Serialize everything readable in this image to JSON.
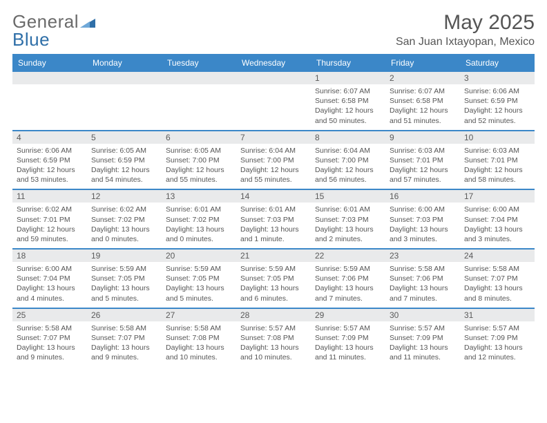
{
  "brand": {
    "part1": "General",
    "part2": "Blue"
  },
  "title": "May 2025",
  "location": "San Juan Ixtayopan, Mexico",
  "colors": {
    "header_blue": "#3b87c8",
    "row_grey": "#e9eaeb",
    "text": "#333333",
    "muted": "#555555",
    "logo_grey": "#6a6a6a",
    "logo_blue": "#2f6fa8",
    "background": "#ffffff"
  },
  "fonts": {
    "family": "Arial",
    "title_pt": 30,
    "location_pt": 16,
    "weekday_pt": 12,
    "daynum_pt": 12,
    "body_pt": 10.5
  },
  "weekdays": [
    "Sunday",
    "Monday",
    "Tuesday",
    "Wednesday",
    "Thursday",
    "Friday",
    "Saturday"
  ],
  "calendar": {
    "type": "table",
    "month": 5,
    "year": 2025,
    "first_weekday_index": 4,
    "days": [
      {
        "n": 1,
        "sunrise": "6:07 AM",
        "sunset": "6:58 PM",
        "daylight": "12 hours and 50 minutes."
      },
      {
        "n": 2,
        "sunrise": "6:07 AM",
        "sunset": "6:58 PM",
        "daylight": "12 hours and 51 minutes."
      },
      {
        "n": 3,
        "sunrise": "6:06 AM",
        "sunset": "6:59 PM",
        "daylight": "12 hours and 52 minutes."
      },
      {
        "n": 4,
        "sunrise": "6:06 AM",
        "sunset": "6:59 PM",
        "daylight": "12 hours and 53 minutes."
      },
      {
        "n": 5,
        "sunrise": "6:05 AM",
        "sunset": "6:59 PM",
        "daylight": "12 hours and 54 minutes."
      },
      {
        "n": 6,
        "sunrise": "6:05 AM",
        "sunset": "7:00 PM",
        "daylight": "12 hours and 55 minutes."
      },
      {
        "n": 7,
        "sunrise": "6:04 AM",
        "sunset": "7:00 PM",
        "daylight": "12 hours and 55 minutes."
      },
      {
        "n": 8,
        "sunrise": "6:04 AM",
        "sunset": "7:00 PM",
        "daylight": "12 hours and 56 minutes."
      },
      {
        "n": 9,
        "sunrise": "6:03 AM",
        "sunset": "7:01 PM",
        "daylight": "12 hours and 57 minutes."
      },
      {
        "n": 10,
        "sunrise": "6:03 AM",
        "sunset": "7:01 PM",
        "daylight": "12 hours and 58 minutes."
      },
      {
        "n": 11,
        "sunrise": "6:02 AM",
        "sunset": "7:01 PM",
        "daylight": "12 hours and 59 minutes."
      },
      {
        "n": 12,
        "sunrise": "6:02 AM",
        "sunset": "7:02 PM",
        "daylight": "13 hours and 0 minutes."
      },
      {
        "n": 13,
        "sunrise": "6:01 AM",
        "sunset": "7:02 PM",
        "daylight": "13 hours and 0 minutes."
      },
      {
        "n": 14,
        "sunrise": "6:01 AM",
        "sunset": "7:03 PM",
        "daylight": "13 hours and 1 minute."
      },
      {
        "n": 15,
        "sunrise": "6:01 AM",
        "sunset": "7:03 PM",
        "daylight": "13 hours and 2 minutes."
      },
      {
        "n": 16,
        "sunrise": "6:00 AM",
        "sunset": "7:03 PM",
        "daylight": "13 hours and 3 minutes."
      },
      {
        "n": 17,
        "sunrise": "6:00 AM",
        "sunset": "7:04 PM",
        "daylight": "13 hours and 3 minutes."
      },
      {
        "n": 18,
        "sunrise": "6:00 AM",
        "sunset": "7:04 PM",
        "daylight": "13 hours and 4 minutes."
      },
      {
        "n": 19,
        "sunrise": "5:59 AM",
        "sunset": "7:05 PM",
        "daylight": "13 hours and 5 minutes."
      },
      {
        "n": 20,
        "sunrise": "5:59 AM",
        "sunset": "7:05 PM",
        "daylight": "13 hours and 5 minutes."
      },
      {
        "n": 21,
        "sunrise": "5:59 AM",
        "sunset": "7:05 PM",
        "daylight": "13 hours and 6 minutes."
      },
      {
        "n": 22,
        "sunrise": "5:59 AM",
        "sunset": "7:06 PM",
        "daylight": "13 hours and 7 minutes."
      },
      {
        "n": 23,
        "sunrise": "5:58 AM",
        "sunset": "7:06 PM",
        "daylight": "13 hours and 7 minutes."
      },
      {
        "n": 24,
        "sunrise": "5:58 AM",
        "sunset": "7:07 PM",
        "daylight": "13 hours and 8 minutes."
      },
      {
        "n": 25,
        "sunrise": "5:58 AM",
        "sunset": "7:07 PM",
        "daylight": "13 hours and 9 minutes."
      },
      {
        "n": 26,
        "sunrise": "5:58 AM",
        "sunset": "7:07 PM",
        "daylight": "13 hours and 9 minutes."
      },
      {
        "n": 27,
        "sunrise": "5:58 AM",
        "sunset": "7:08 PM",
        "daylight": "13 hours and 10 minutes."
      },
      {
        "n": 28,
        "sunrise": "5:57 AM",
        "sunset": "7:08 PM",
        "daylight": "13 hours and 10 minutes."
      },
      {
        "n": 29,
        "sunrise": "5:57 AM",
        "sunset": "7:09 PM",
        "daylight": "13 hours and 11 minutes."
      },
      {
        "n": 30,
        "sunrise": "5:57 AM",
        "sunset": "7:09 PM",
        "daylight": "13 hours and 11 minutes."
      },
      {
        "n": 31,
        "sunrise": "5:57 AM",
        "sunset": "7:09 PM",
        "daylight": "13 hours and 12 minutes."
      }
    ],
    "labels": {
      "sunrise": "Sunrise:",
      "sunset": "Sunset:",
      "daylight": "Daylight:"
    }
  }
}
